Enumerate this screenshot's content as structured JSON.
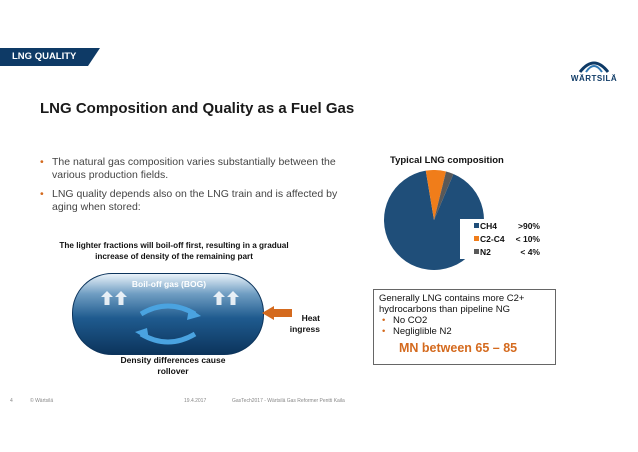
{
  "header": {
    "section_tag": "LNG QUALITY",
    "logo_text": "WÄRTSILÄ"
  },
  "title": "LNG Composition and Quality as a Fuel Gas",
  "bullets": [
    "The natural gas composition varies substantially between the various production fields.",
    "LNG quality depends also on the LNG train and is affected by aging when stored:"
  ],
  "diagram": {
    "boiloff_note": "The lighter fractions will boil-off first, resulting in a gradual increase of density of the remaining part",
    "bog_label": "Boil-off gas (BOG)",
    "heat_label": "Heat ingress",
    "density_label": "Density differences cause rollover"
  },
  "chart_data": {
    "type": "pie",
    "title": "Typical LNG composition",
    "slices": [
      {
        "name": "CH4",
        "label": ">90%",
        "value": 91,
        "color": "#1f4e79"
      },
      {
        "name": "C2-C4",
        "label": "< 10%",
        "value": 6.5,
        "color": "#f07d1a"
      },
      {
        "name": "N2",
        "label": "< 4%",
        "value": 2.5,
        "color": "#595959"
      }
    ],
    "legend_position": "right"
  },
  "info_box": {
    "intro": "Generally LNG contains more C2+ hydrocarbons than pipeline NG",
    "items": [
      "No CO2",
      "Negliglible N2"
    ],
    "mn": "MN between 65 – 85"
  },
  "footer": {
    "page": "4",
    "copyright": "© Wärtsilä",
    "date": "19.4.2017",
    "event": "GasTech2017 - Wärtsilä Gas Reformer Pentti Kaila"
  },
  "colors": {
    "brand_navy": "#0e3a66",
    "accent_orange": "#d46a1e"
  }
}
